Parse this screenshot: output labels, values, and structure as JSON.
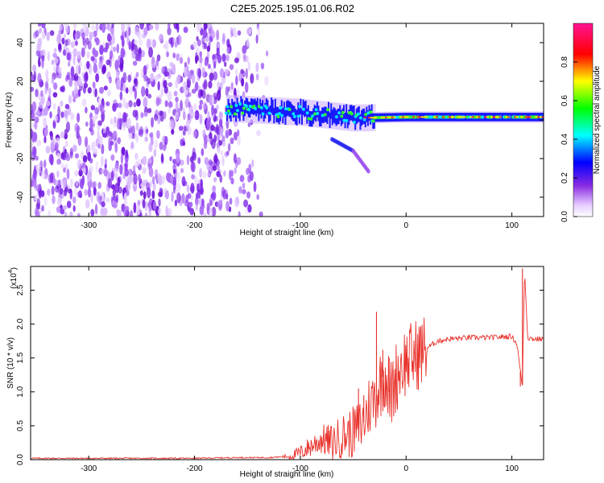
{
  "title": "C2E5.2025.195.01.06.R02",
  "chart_data": [
    {
      "type": "heatmap",
      "xlabel": "Height of straight line (km)",
      "ylabel": "Frequency (Hz)",
      "xlim": [
        -355,
        130
      ],
      "ylim": [
        -50,
        50
      ],
      "xticks": [
        "-300",
        "-200",
        "-100",
        "0",
        "100"
      ],
      "yticks": [
        "-40",
        "-20",
        "0",
        "20",
        "40"
      ],
      "colorbar": {
        "label": "Normalized spectral amplitude",
        "range": [
          0,
          1
        ],
        "ticks": [
          "0.0",
          "0.2",
          "0.4",
          "0.6",
          "0.8"
        ],
        "colors": [
          "#ffffff",
          "#e6ccff",
          "#8a2be2",
          "#0000ff",
          "#00ffff",
          "#00ff00",
          "#ffff00",
          "#ff0000",
          "#ff1493"
        ]
      },
      "features": {
        "noise_region_x": [
          -355,
          -135
        ],
        "signal_band_x": [
          -170,
          130
        ],
        "signal_band_center_hz": [
          [
            -170,
            6
          ],
          [
            -100,
            4
          ],
          [
            -50,
            1
          ],
          [
            0,
            1.5
          ],
          [
            50,
            1.5
          ],
          [
            130,
            1.5
          ]
        ],
        "chirp_trace": [
          [
            -70,
            -10
          ],
          [
            -50,
            -16
          ],
          [
            -35,
            -27
          ]
        ]
      }
    },
    {
      "type": "line",
      "xlabel": "Height of straight line (km)",
      "ylabel": "SNR (10 * v/v)",
      "y_multiplier": "(x10",
      "y_multiplier_exp": "4",
      "series_color": "#e8312a",
      "xlim": [
        -355,
        130
      ],
      "ylim": [
        0,
        2.85
      ],
      "xticks": [
        "-300",
        "-200",
        "-100",
        "0",
        "100"
      ],
      "yticks": [
        "0.0",
        "0.5",
        "1.0",
        "1.5",
        "2.0",
        "2.5"
      ],
      "x": [
        -355,
        -300,
        -250,
        -200,
        -160,
        -130,
        -110,
        -100,
        -90,
        -80,
        -70,
        -60,
        -50,
        -40,
        -35,
        -30,
        -25,
        -20,
        -18,
        -15,
        -10,
        -5,
        0,
        10,
        20,
        30,
        40,
        60,
        80,
        100,
        105,
        108,
        110,
        112,
        115,
        120,
        130
      ],
      "y": [
        0.02,
        0.02,
        0.02,
        0.02,
        0.03,
        0.03,
        0.05,
        0.1,
        0.2,
        0.3,
        0.25,
        0.35,
        0.4,
        0.55,
        0.8,
        0.9,
        1.1,
        1.3,
        1.2,
        0.9,
        1.2,
        1.4,
        1.45,
        1.55,
        1.65,
        1.75,
        1.78,
        1.8,
        1.8,
        1.82,
        1.7,
        1.3,
        1.1,
        2.8,
        1.8,
        1.78,
        1.78
      ],
      "spikes": [
        [
          -28,
          2.18
        ],
        [
          -22,
          1.62
        ],
        [
          -16,
          1.5
        ],
        [
          -45,
          1.05
        ],
        [
          -40,
          0.95
        ],
        [
          110,
          2.82
        ],
        [
          108,
          1.08
        ]
      ]
    }
  ]
}
